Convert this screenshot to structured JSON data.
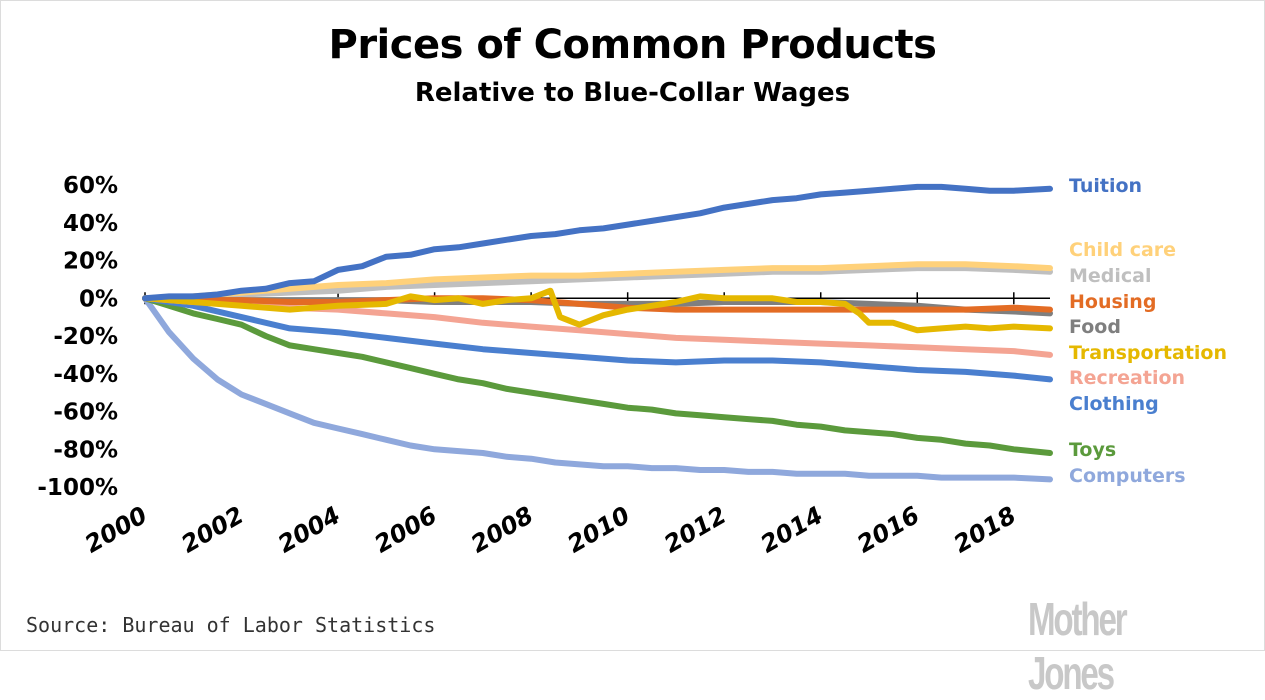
{
  "header": {
    "title": "Prices of Common Products",
    "subtitle": "Relative to Blue-Collar Wages"
  },
  "footer": {
    "source": "Source: Bureau of Labor Statistics",
    "brand": "Mother Jones"
  },
  "chart_data": {
    "type": "line",
    "title": "Prices of Common Products",
    "subtitle": "Relative to Blue-Collar Wages",
    "xlabel": "",
    "ylabel": "",
    "xlim": [
      2000,
      2018.75
    ],
    "ylim": [
      -100,
      60
    ],
    "grid": false,
    "legend": "right (labels at line ends)",
    "x_ticks": [
      2000,
      2002,
      2004,
      2006,
      2008,
      2010,
      2012,
      2014,
      2016,
      2018
    ],
    "x_tick_labels": [
      "2000",
      "2002",
      "2004",
      "2006",
      "2008",
      "2010",
      "2012",
      "2014",
      "2016",
      "2018"
    ],
    "y_ticks": [
      60,
      40,
      20,
      0,
      -20,
      -40,
      -60,
      -80,
      -100
    ],
    "y_tick_labels": [
      "60%",
      "40%",
      "20%",
      "0%",
      "-20%",
      "-40%",
      "-60%",
      "-80%",
      "-100%"
    ],
    "series": [
      {
        "name": "Tuition",
        "color": "#4472c4",
        "x": [
          2000,
          2000.5,
          2001,
          2001.5,
          2002,
          2002.5,
          2003,
          2003.5,
          2004,
          2004.5,
          2005,
          2005.5,
          2006,
          2006.5,
          2007,
          2007.5,
          2008,
          2008.5,
          2009,
          2009.5,
          2010,
          2010.5,
          2011,
          2011.5,
          2012,
          2012.5,
          2013,
          2013.5,
          2014,
          2014.5,
          2015,
          2015.5,
          2016,
          2016.5,
          2017,
          2017.5,
          2018,
          2018.75
        ],
        "values": [
          0,
          1,
          1,
          2,
          4,
          5,
          8,
          9,
          15,
          17,
          22,
          23,
          26,
          27,
          29,
          31,
          33,
          34,
          36,
          37,
          39,
          41,
          43,
          45,
          48,
          50,
          52,
          53,
          55,
          56,
          57,
          58,
          59,
          59,
          58,
          57,
          57,
          58
        ]
      },
      {
        "name": "Child care",
        "color": "#ffd17a",
        "x": [
          2000,
          2001,
          2002,
          2003,
          2004,
          2005,
          2006,
          2007,
          2008,
          2009,
          2010,
          2011,
          2012,
          2013,
          2014,
          2015,
          2016,
          2017,
          2018,
          2018.75
        ],
        "values": [
          0,
          1,
          3,
          5,
          7,
          8,
          10,
          11,
          12,
          12,
          13,
          14,
          15,
          16,
          16,
          17,
          18,
          18,
          17,
          16
        ]
      },
      {
        "name": "Medical",
        "color": "#bfbfbf",
        "x": [
          2000,
          2001,
          2002,
          2003,
          2004,
          2005,
          2006,
          2007,
          2008,
          2009,
          2010,
          2011,
          2012,
          2013,
          2014,
          2015,
          2016,
          2017,
          2018,
          2018.75
        ],
        "values": [
          0,
          1,
          2,
          3,
          4,
          6,
          7,
          8,
          9,
          10,
          11,
          12,
          13,
          14,
          14,
          15,
          16,
          16,
          15,
          14
        ]
      },
      {
        "name": "Housing",
        "color": "#e36c24",
        "x": [
          2000,
          2001,
          2002,
          2003,
          2004,
          2005,
          2006,
          2007,
          2008,
          2009,
          2010,
          2011,
          2012,
          2013,
          2014,
          2015,
          2016,
          2017,
          2018,
          2018.75
        ],
        "values": [
          0,
          -1,
          -1,
          -2,
          -2,
          -1,
          0,
          0,
          -1,
          -3,
          -5,
          -6,
          -6,
          -6,
          -6,
          -6,
          -6,
          -6,
          -5,
          -6
        ]
      },
      {
        "name": "Food",
        "color": "#7f7f7f",
        "x": [
          2000,
          2001,
          2002,
          2003,
          2004,
          2005,
          2006,
          2007,
          2008,
          2009,
          2010,
          2011,
          2012,
          2013,
          2014,
          2015,
          2016,
          2017,
          2018,
          2018.75
        ],
        "values": [
          0,
          -1,
          -1,
          -1,
          -1,
          -1,
          -2,
          -2,
          -2,
          -3,
          -3,
          -3,
          -2,
          -2,
          -2,
          -3,
          -4,
          -6,
          -7,
          -8
        ]
      },
      {
        "name": "Transportation",
        "color": "#e5b800",
        "x": [
          2000,
          2001,
          2002,
          2003,
          2004,
          2005,
          2005.5,
          2006,
          2006.5,
          2007,
          2007.5,
          2008,
          2008.4,
          2008.6,
          2009,
          2009.5,
          2010,
          2010.5,
          2011,
          2011.5,
          2012,
          2012.5,
          2013,
          2013.5,
          2014,
          2014.5,
          2014.8,
          2015,
          2015.5,
          2016,
          2016.5,
          2017,
          2017.5,
          2018,
          2018.75
        ],
        "values": [
          0,
          -2,
          -4,
          -6,
          -4,
          -3,
          1,
          -1,
          0,
          -3,
          -1,
          0,
          4,
          -10,
          -14,
          -9,
          -6,
          -4,
          -2,
          1,
          0,
          0,
          0,
          -2,
          -2,
          -3,
          -8,
          -13,
          -13,
          -17,
          -16,
          -15,
          -16,
          -15,
          -16
        ]
      },
      {
        "name": "Recreation",
        "color": "#f4a493",
        "x": [
          2000,
          2001,
          2002,
          2003,
          2004,
          2005,
          2006,
          2007,
          2008,
          2009,
          2010,
          2011,
          2012,
          2013,
          2014,
          2015,
          2016,
          2017,
          2018,
          2018.75
        ],
        "values": [
          0,
          -2,
          -3,
          -5,
          -6,
          -8,
          -10,
          -13,
          -15,
          -17,
          -19,
          -21,
          -22,
          -23,
          -24,
          -25,
          -26,
          -27,
          -28,
          -30
        ]
      },
      {
        "name": "Clothing",
        "color": "#4a7fcf",
        "x": [
          2000,
          2001,
          2002,
          2003,
          2004,
          2005,
          2006,
          2007,
          2008,
          2009,
          2010,
          2011,
          2012,
          2013,
          2014,
          2015,
          2016,
          2017,
          2018,
          2018.75
        ],
        "values": [
          0,
          -4,
          -10,
          -16,
          -18,
          -21,
          -24,
          -27,
          -29,
          -31,
          -33,
          -34,
          -33,
          -33,
          -34,
          -36,
          -38,
          -39,
          -41,
          -43
        ]
      },
      {
        "name": "Toys",
        "color": "#5b9a3c",
        "x": [
          2000,
          2000.5,
          2001,
          2001.5,
          2002,
          2002.5,
          2003,
          2003.5,
          2004,
          2004.5,
          2005,
          2005.5,
          2006,
          2006.5,
          2007,
          2007.5,
          2008,
          2008.5,
          2009,
          2009.5,
          2010,
          2010.5,
          2011,
          2011.5,
          2012,
          2012.5,
          2013,
          2013.5,
          2014,
          2014.5,
          2015,
          2015.5,
          2016,
          2016.5,
          2017,
          2017.5,
          2018,
          2018.75
        ],
        "values": [
          0,
          -4,
          -8,
          -11,
          -14,
          -20,
          -25,
          -27,
          -29,
          -31,
          -34,
          -37,
          -40,
          -43,
          -45,
          -48,
          -50,
          -52,
          -54,
          -56,
          -58,
          -59,
          -61,
          -62,
          -63,
          -64,
          -65,
          -67,
          -68,
          -70,
          -71,
          -72,
          -74,
          -75,
          -77,
          -78,
          -80,
          -82
        ]
      },
      {
        "name": "Computers",
        "color": "#8fa8dc",
        "x": [
          2000,
          2000.5,
          2001,
          2001.5,
          2002,
          2002.5,
          2003,
          2003.5,
          2004,
          2004.5,
          2005,
          2005.5,
          2006,
          2006.5,
          2007,
          2007.5,
          2008,
          2008.5,
          2009,
          2009.5,
          2010,
          2010.5,
          2011,
          2011.5,
          2012,
          2012.5,
          2013,
          2013.5,
          2014,
          2014.5,
          2015,
          2015.5,
          2016,
          2016.5,
          2017,
          2017.5,
          2018,
          2018.75
        ],
        "values": [
          0,
          -18,
          -32,
          -43,
          -51,
          -56,
          -61,
          -66,
          -69,
          -72,
          -75,
          -78,
          -80,
          -81,
          -82,
          -84,
          -85,
          -87,
          -88,
          -89,
          -89,
          -90,
          -90,
          -91,
          -91,
          -92,
          -92,
          -93,
          -93,
          -93,
          -94,
          -94,
          -94,
          -95,
          -95,
          -95,
          -95,
          -96
        ]
      }
    ]
  }
}
